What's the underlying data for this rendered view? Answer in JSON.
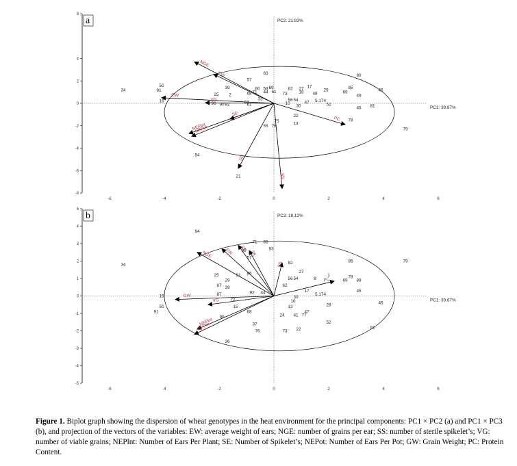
{
  "chart_data": [
    {
      "type": "scatter",
      "panel": "a",
      "xlabel": "PC1: 39.87%",
      "ylabel": "PC2: 21.83%",
      "xlim": [
        -7,
        7
      ],
      "ylim": [
        -8,
        8
      ],
      "xticks": [
        "-6",
        "-4",
        "-2",
        "0",
        "2",
        "4",
        "6"
      ],
      "yticks": [
        "8",
        "4",
        "2",
        "0",
        "-2",
        "-4",
        "-6",
        "-8"
      ],
      "points": [
        {
          "label": "34",
          "x": -5.5,
          "y": 1.2
        },
        {
          "label": "50",
          "x": -4.1,
          "y": 1.6
        },
        {
          "label": "91",
          "x": -4.2,
          "y": 1.15
        },
        {
          "label": "16",
          "x": -4.1,
          "y": 0.2
        },
        {
          "label": "94",
          "x": -2.8,
          "y": -4.6
        },
        {
          "label": "21",
          "x": -1.3,
          "y": -6.5
        },
        {
          "label": "39",
          "x": -1.7,
          "y": 1.4
        },
        {
          "label": "25",
          "x": -2.1,
          "y": 0.8
        },
        {
          "label": "2",
          "x": -1.6,
          "y": 0.75
        },
        {
          "label": "96",
          "x": -2.2,
          "y": 0.0
        },
        {
          "label": "90",
          "x": -1.9,
          "y": -0.1
        },
        {
          "label": "92",
          "x": -1.7,
          "y": -0.1
        },
        {
          "label": "57",
          "x": -0.9,
          "y": 2.1
        },
        {
          "label": "83",
          "x": -0.3,
          "y": 2.7
        },
        {
          "label": "60",
          "x": -0.6,
          "y": 1.3
        },
        {
          "label": "58",
          "x": -0.3,
          "y": 1.3
        },
        {
          "label": "69",
          "x": -0.1,
          "y": 1.4
        },
        {
          "label": "44",
          "x": -0.3,
          "y": 1.0
        },
        {
          "label": "51",
          "x": 0.0,
          "y": 1.05
        },
        {
          "label": "68",
          "x": -0.9,
          "y": 0.9
        },
        {
          "label": "71",
          "x": -0.7,
          "y": 1.0
        },
        {
          "label": "67",
          "x": -1.0,
          "y": 0.1
        },
        {
          "label": "33",
          "x": -0.5,
          "y": 0.4
        },
        {
          "label": "82",
          "x": 0.6,
          "y": 1.3
        },
        {
          "label": "27",
          "x": 1.0,
          "y": 1.3
        },
        {
          "label": "17",
          "x": 1.3,
          "y": 1.5
        },
        {
          "label": "73",
          "x": 0.4,
          "y": 0.85
        },
        {
          "label": "18",
          "x": 1.0,
          "y": 1.0
        },
        {
          "label": "48",
          "x": 1.5,
          "y": 0.9
        },
        {
          "label": "29",
          "x": 1.9,
          "y": 1.2
        },
        {
          "label": "80",
          "x": 3.1,
          "y": 2.5
        },
        {
          "label": "85",
          "x": 2.8,
          "y": 1.4
        },
        {
          "label": "69",
          "x": 2.6,
          "y": 1.0
        },
        {
          "label": "49",
          "x": 3.1,
          "y": 0.7
        },
        {
          "label": "46",
          "x": 3.9,
          "y": 1.2
        },
        {
          "label": "81",
          "x": 3.6,
          "y": -0.2
        },
        {
          "label": "45",
          "x": 3.1,
          "y": -0.4
        },
        {
          "label": "78",
          "x": 2.8,
          "y": -1.5
        },
        {
          "label": "79",
          "x": 4.8,
          "y": -2.3
        },
        {
          "label": "52",
          "x": 2.0,
          "y": -0.1
        },
        {
          "label": "56",
          "x": 0.6,
          "y": 0.3
        },
        {
          "label": "54",
          "x": 0.8,
          "y": 0.3
        },
        {
          "label": "47",
          "x": 1.2,
          "y": 0.1
        },
        {
          "label": "5.174",
          "x": 1.7,
          "y": 0.25
        },
        {
          "label": "22",
          "x": 0.8,
          "y": -1.1
        },
        {
          "label": "13",
          "x": 0.8,
          "y": -1.8
        },
        {
          "label": "75",
          "x": 0.1,
          "y": -1.6
        },
        {
          "label": "55",
          "x": -0.3,
          "y": -2.0
        },
        {
          "label": "76",
          "x": 0.0,
          "y": -2.0
        },
        {
          "label": "61",
          "x": -0.9,
          "y": -0.1
        },
        {
          "label": "30",
          "x": 0.9,
          "y": -0.2
        },
        {
          "label": "10",
          "x": 0.5,
          "y": 0.0
        }
      ],
      "vectors": [
        {
          "name": "NGE",
          "x": -2.9,
          "y": 3.7
        },
        {
          "name": "EW",
          "x": -2.2,
          "y": 2.6
        },
        {
          "name": "GW",
          "x": -4.1,
          "y": 0.5
        },
        {
          "name": "VG",
          "x": -2.5,
          "y": 0.05
        },
        {
          "name": "NEPlnt",
          "x": -3.1,
          "y": -2.7
        },
        {
          "name": "NEPot",
          "x": -3.0,
          "y": -2.95
        },
        {
          "name": "SE",
          "x": -1.6,
          "y": -1.4
        },
        {
          "name": "SE",
          "x": -1.3,
          "y": -5.8
        },
        {
          "name": "SS",
          "x": 0.3,
          "y": -7.6
        },
        {
          "name": "PC",
          "x": 2.6,
          "y": -1.9
        }
      ],
      "annotation_pc2": "PC2: 21.83%"
    },
    {
      "type": "scatter",
      "panel": "b",
      "xlabel": "PC1: 39.87%",
      "ylabel": "PC3: 18.12%",
      "xlim": [
        -7,
        7
      ],
      "ylim": [
        -5,
        5
      ],
      "xticks": [
        "-6",
        "-4",
        "-2",
        "0",
        "2",
        "4",
        "6"
      ],
      "yticks": [
        "5",
        "4",
        "3",
        "2",
        "1",
        "0",
        "-1",
        "-2",
        "-3",
        "-4",
        "-5"
      ],
      "points": [
        {
          "label": "94",
          "x": -2.8,
          "y": 3.7
        },
        {
          "label": "71",
          "x": -0.7,
          "y": 3.1
        },
        {
          "label": "83",
          "x": -0.3,
          "y": 3.1
        },
        {
          "label": "60",
          "x": -1.1,
          "y": 2.6
        },
        {
          "label": "93",
          "x": -0.1,
          "y": 2.7
        },
        {
          "label": "57",
          "x": -0.9,
          "y": 2.2
        },
        {
          "label": "34",
          "x": -5.5,
          "y": 1.8
        },
        {
          "label": "82",
          "x": 0.6,
          "y": 1.9
        },
        {
          "label": "27",
          "x": 1.0,
          "y": 1.4
        },
        {
          "label": "86",
          "x": -0.9,
          "y": 1.3
        },
        {
          "label": "25",
          "x": -2.1,
          "y": 1.2
        },
        {
          "label": "29",
          "x": -1.7,
          "y": 0.9
        },
        {
          "label": "21",
          "x": -1.3,
          "y": 1.2
        },
        {
          "label": "67",
          "x": -2.0,
          "y": 0.6
        },
        {
          "label": "39",
          "x": -1.7,
          "y": 0.5
        },
        {
          "label": "87",
          "x": -2.0,
          "y": 0.1
        },
        {
          "label": "56",
          "x": 0.6,
          "y": 1.0
        },
        {
          "label": "54",
          "x": 0.8,
          "y": 1.0
        },
        {
          "label": "8",
          "x": 1.5,
          "y": 1.0
        },
        {
          "label": "1",
          "x": 2.0,
          "y": 1.2
        },
        {
          "label": "69",
          "x": 2.6,
          "y": 0.9
        },
        {
          "label": "78",
          "x": 2.8,
          "y": 1.1
        },
        {
          "label": "85",
          "x": 2.8,
          "y": 2.0
        },
        {
          "label": "89",
          "x": 3.1,
          "y": 0.9
        },
        {
          "label": "45",
          "x": 3.1,
          "y": 0.3
        },
        {
          "label": "79",
          "x": 4.8,
          "y": 2.0
        },
        {
          "label": "46",
          "x": 3.9,
          "y": -0.4
        },
        {
          "label": "81",
          "x": 3.6,
          "y": -1.8
        },
        {
          "label": "16",
          "x": -4.1,
          "y": 0.0
        },
        {
          "label": "50",
          "x": -4.1,
          "y": -0.6
        },
        {
          "label": "91",
          "x": -4.3,
          "y": -0.9
        },
        {
          "label": "72",
          "x": -1.5,
          "y": -0.2
        },
        {
          "label": "15",
          "x": -1.4,
          "y": -0.6
        },
        {
          "label": "90",
          "x": -1.9,
          "y": -1.2
        },
        {
          "label": "36",
          "x": -1.7,
          "y": -2.6
        },
        {
          "label": "37",
          "x": -0.7,
          "y": -1.6
        },
        {
          "label": "76",
          "x": -0.6,
          "y": -2.0
        },
        {
          "label": "73",
          "x": 0.4,
          "y": -2.0
        },
        {
          "label": "22",
          "x": 0.9,
          "y": -1.9
        },
        {
          "label": "52",
          "x": 2.0,
          "y": -1.5
        },
        {
          "label": "28",
          "x": 2.0,
          "y": -0.5
        },
        {
          "label": "47",
          "x": 1.2,
          "y": -0.9
        },
        {
          "label": "41",
          "x": 0.8,
          "y": -1.1
        },
        {
          "label": "77",
          "x": 1.1,
          "y": -1.1
        },
        {
          "label": "24",
          "x": 0.3,
          "y": -1.1
        },
        {
          "label": "13",
          "x": 0.6,
          "y": -0.6
        },
        {
          "label": "10",
          "x": 0.7,
          "y": -0.3
        },
        {
          "label": "30",
          "x": 0.8,
          "y": -0.05
        },
        {
          "label": "17",
          "x": 1.2,
          "y": 0.3
        },
        {
          "label": "5.174",
          "x": 1.7,
          "y": 0.1
        },
        {
          "label": "68",
          "x": -0.9,
          "y": -0.9
        },
        {
          "label": "92",
          "x": -0.8,
          "y": 0.2
        },
        {
          "label": "62",
          "x": 0.4,
          "y": 0.6
        },
        {
          "label": "44",
          "x": -0.4,
          "y": 0.2
        }
      ],
      "vectors": [
        {
          "name": "NGE",
          "x": -2.8,
          "y": 2.5
        },
        {
          "name": "EW",
          "x": -1.9,
          "y": 2.7
        },
        {
          "name": "SE",
          "x": -1.3,
          "y": 2.9
        },
        {
          "name": "SE",
          "x": -0.9,
          "y": 2.6
        },
        {
          "name": "SS",
          "x": 0.3,
          "y": 1.9
        },
        {
          "name": "GW",
          "x": -3.6,
          "y": -0.2
        },
        {
          "name": "VG",
          "x": -2.4,
          "y": -0.5
        },
        {
          "name": "NEPlnt",
          "x": -2.8,
          "y": -1.9
        },
        {
          "name": "NEPot",
          "x": -2.9,
          "y": -2.2
        },
        {
          "name": "PC",
          "x": 2.2,
          "y": 0.85
        }
      ],
      "annotation_pc3": "PC3: 18.12%"
    }
  ],
  "panels": {
    "a_letter": "a",
    "b_letter": "b",
    "a_pc_top": "PC2: 21.83%",
    "a_pc_right": "PC1: 39.87%",
    "b_pc_top": "PC3: 18.12%",
    "b_pc_right": "PC1: 39.87%"
  },
  "caption": {
    "label": "Figure 1.",
    "text": " Biplot graph showing the dispersion of wheat genotypes in the heat environment for the principal components: PC1 × PC2 (a) and PC1 × PC3 (b), and projection of the vectors of the variables: EW: average weight of ears; NGE: number of grains per ear; SS: number of sterile spikelet’s; VG: number of viable grains; NEPlnt: Number of Ears Per Plant; SE: Number of Spikelet’s; NEPot: Number of Ears Per Pot; GW: Grain Weight; PC: Protein Content."
  },
  "colors": {
    "vector_label": "#b0323c",
    "axis": "#000000"
  }
}
